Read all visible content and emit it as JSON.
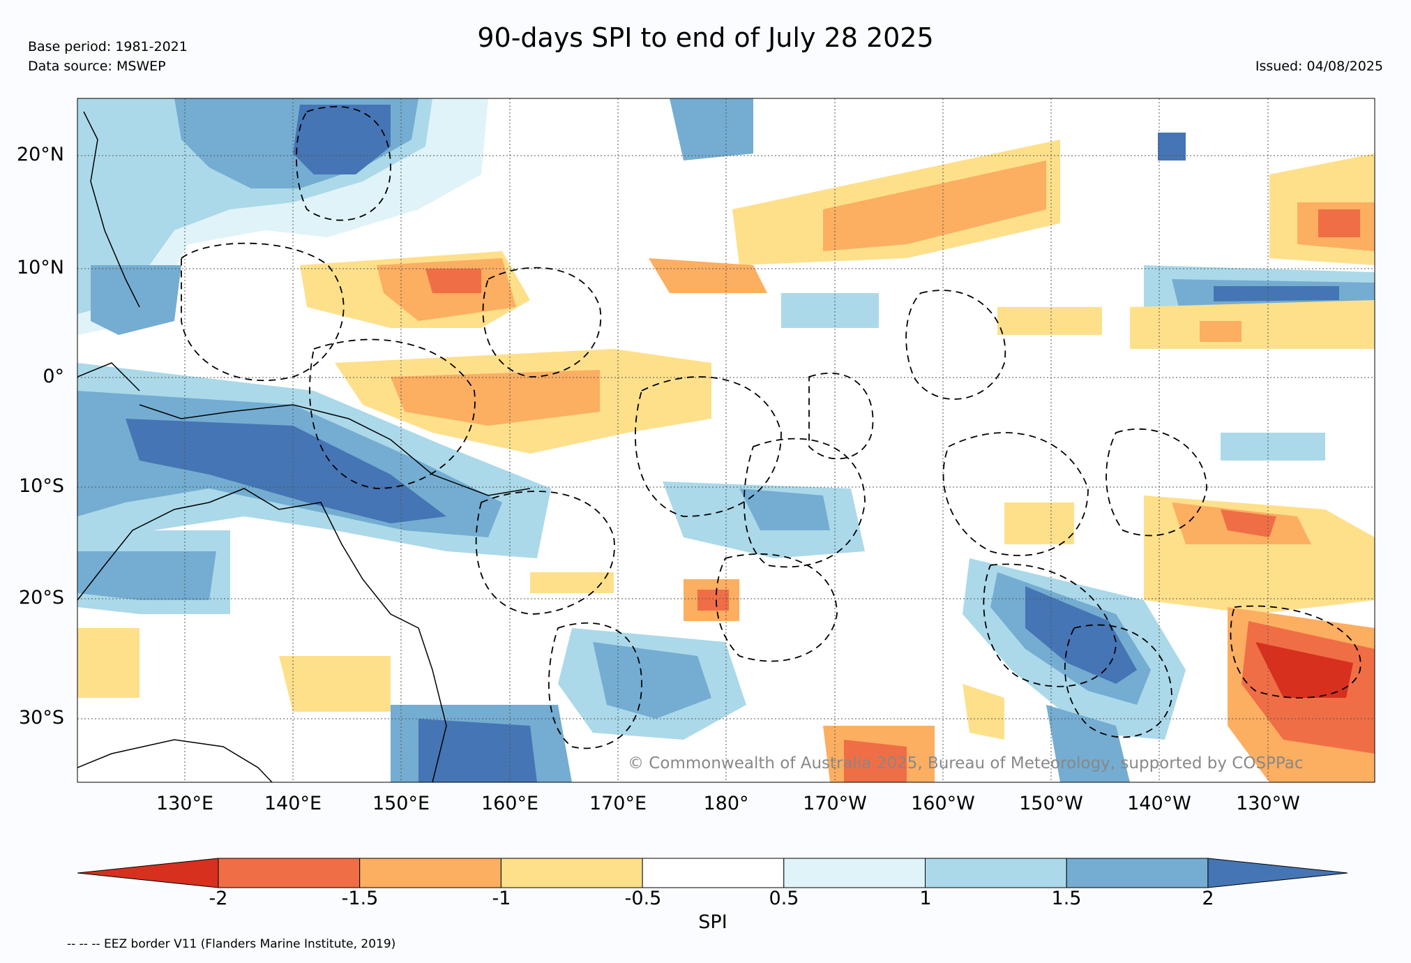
{
  "title": "90-days SPI to end of July 28 2025",
  "base_period": "Base period: 1981-2021",
  "data_source": "Data source: MSWEP",
  "issued": "Issued: 04/08/2025",
  "copyright": "© Commonwealth of Australia 2025, Bureau of Meteorology, supported by COSPPac",
  "legend_note": "-- -- -- EEZ border V11 (Flanders Marine Institute, 2019)",
  "latitude_labels": [
    "20°N",
    "10°N",
    "0°",
    "10°S",
    "20°S",
    "30°S"
  ],
  "longitude_labels": [
    "130°E",
    "140°E",
    "150°E",
    "160°E",
    "170°E",
    "180°",
    "170°W",
    "160°W",
    "150°W",
    "140°W",
    "130°W"
  ],
  "colorbar": {
    "title": "SPI",
    "tick_labels": [
      "-2",
      "-1.5",
      "-1",
      "-0.5",
      "0.5",
      "1",
      "1.5",
      "2"
    ],
    "colors": [
      "#d7301f",
      "#f06e45",
      "#fcae61",
      "#fee08b",
      "#ffffff",
      "#e0f3f8",
      "#abd9e9",
      "#74add1",
      "#4575b4"
    ]
  }
}
